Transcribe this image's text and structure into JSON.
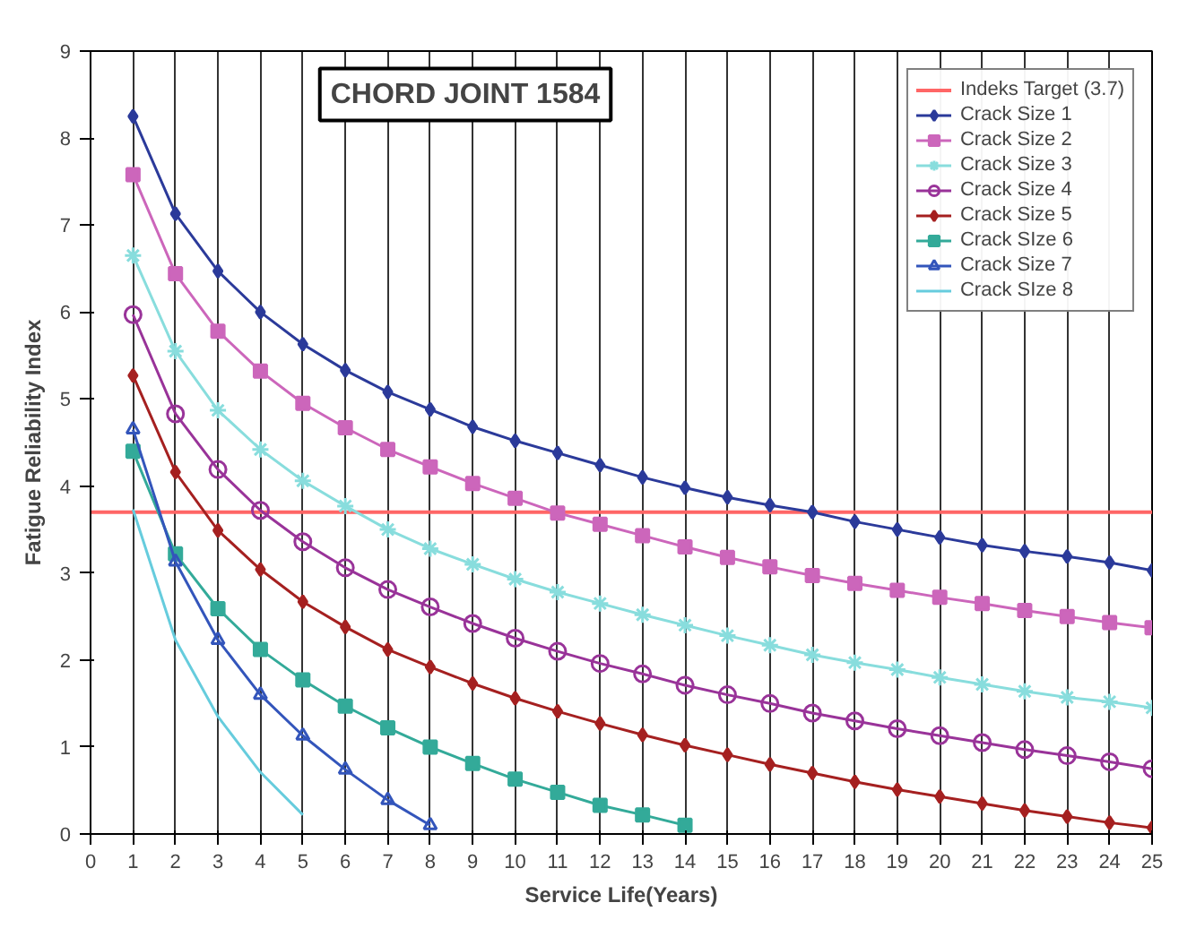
{
  "chart_data": {
    "type": "line",
    "title": "CHORD JOINT 1584",
    "xlabel": "Service Life(Years)",
    "ylabel": "Fatigue Reliability Index",
    "xlim": [
      0,
      25
    ],
    "xticks": [
      0,
      1,
      2,
      3,
      4,
      5,
      6,
      7,
      8,
      9,
      10,
      11,
      12,
      13,
      14,
      15,
      16,
      17,
      18,
      19,
      20,
      21,
      22,
      23,
      24,
      25
    ],
    "ylim": [
      0,
      9
    ],
    "yticks": [
      0,
      1,
      2,
      3,
      4,
      5,
      6,
      7,
      8,
      9
    ],
    "grid": "x",
    "legend": "top right",
    "ref_lines": [
      {
        "axis": "y",
        "value": 3.7,
        "label": "Indeks Target (3.7)",
        "color": "#ff6666"
      }
    ],
    "series": [
      {
        "name": "Crack Size 1",
        "color": "#2b3a9a",
        "marker": "diamond",
        "x": [
          1,
          2,
          3,
          4,
          5,
          6,
          7,
          8,
          9,
          10,
          11,
          12,
          13,
          14,
          15,
          16,
          17,
          18,
          19,
          20,
          21,
          22,
          23,
          24,
          25
        ],
        "values": [
          8.25,
          7.13,
          6.47,
          6.0,
          5.63,
          5.33,
          5.08,
          4.88,
          4.68,
          4.52,
          4.38,
          4.24,
          4.1,
          3.98,
          3.87,
          3.78,
          3.7,
          3.59,
          3.5,
          3.41,
          3.32,
          3.25,
          3.19,
          3.12,
          3.03
        ]
      },
      {
        "name": "Crack Size 2",
        "color": "#cc66bb",
        "marker": "square",
        "x": [
          1,
          2,
          3,
          4,
          5,
          6,
          7,
          8,
          9,
          10,
          11,
          12,
          13,
          14,
          15,
          16,
          17,
          18,
          19,
          20,
          21,
          22,
          23,
          24,
          25
        ],
        "values": [
          7.58,
          6.44,
          5.78,
          5.32,
          4.95,
          4.67,
          4.42,
          4.22,
          4.03,
          3.86,
          3.69,
          3.56,
          3.43,
          3.3,
          3.18,
          3.07,
          2.97,
          2.88,
          2.8,
          2.72,
          2.65,
          2.57,
          2.5,
          2.43,
          2.37
        ]
      },
      {
        "name": "Crack Size 3",
        "color": "#88dddd",
        "marker": "cross",
        "x": [
          1,
          2,
          3,
          4,
          5,
          6,
          7,
          8,
          9,
          10,
          11,
          12,
          13,
          14,
          15,
          16,
          17,
          18,
          19,
          20,
          21,
          22,
          23,
          24,
          25
        ],
        "values": [
          6.65,
          5.55,
          4.87,
          4.42,
          4.06,
          3.77,
          3.5,
          3.28,
          3.1,
          2.93,
          2.78,
          2.65,
          2.52,
          2.4,
          2.28,
          2.17,
          2.06,
          1.97,
          1.89,
          1.8,
          1.72,
          1.64,
          1.57,
          1.52,
          1.45
        ]
      },
      {
        "name": "Crack Size 4",
        "color": "#993399",
        "marker": "circle",
        "x": [
          1,
          2,
          3,
          4,
          5,
          6,
          7,
          8,
          9,
          10,
          11,
          12,
          13,
          14,
          15,
          16,
          17,
          18,
          19,
          20,
          21,
          22,
          23,
          24,
          25
        ],
        "values": [
          5.97,
          4.83,
          4.19,
          3.72,
          3.36,
          3.06,
          2.81,
          2.61,
          2.42,
          2.25,
          2.1,
          1.96,
          1.84,
          1.71,
          1.6,
          1.5,
          1.39,
          1.3,
          1.21,
          1.13,
          1.05,
          0.97,
          0.9,
          0.83,
          0.75
        ]
      },
      {
        "name": "Crack Size 5",
        "color": "#a52020",
        "marker": "diamond",
        "x": [
          1,
          2,
          3,
          4,
          5,
          6,
          7,
          8,
          9,
          10,
          11,
          12,
          13,
          14,
          15,
          16,
          17,
          18,
          19,
          20,
          21,
          22,
          23,
          24,
          25
        ],
        "values": [
          5.27,
          4.16,
          3.49,
          3.04,
          2.67,
          2.38,
          2.12,
          1.92,
          1.73,
          1.56,
          1.41,
          1.27,
          1.14,
          1.02,
          0.91,
          0.8,
          0.7,
          0.6,
          0.51,
          0.43,
          0.35,
          0.27,
          0.2,
          0.13,
          0.07
        ]
      },
      {
        "name": "Crack SIze 6",
        "color": "#33aa99",
        "marker": "square",
        "x": [
          1,
          2,
          3,
          4,
          5,
          6,
          7,
          8,
          9,
          10,
          11,
          12,
          13,
          14
        ],
        "values": [
          4.4,
          3.22,
          2.59,
          2.12,
          1.77,
          1.47,
          1.22,
          1.0,
          0.81,
          0.63,
          0.48,
          0.33,
          0.22,
          0.1
        ]
      },
      {
        "name": "Crack Size 7",
        "color": "#3355bb",
        "marker": "triangle",
        "x": [
          1,
          2,
          3,
          4,
          5,
          6,
          7,
          8
        ],
        "values": [
          4.65,
          3.13,
          2.23,
          1.6,
          1.13,
          0.74,
          0.39,
          0.1
        ]
      },
      {
        "name": "Crack SIze 8",
        "color": "#66ccdd",
        "marker": "none",
        "x": [
          1,
          2,
          3,
          4,
          5
        ],
        "values": [
          3.73,
          2.23,
          1.35,
          0.71,
          0.22
        ]
      }
    ]
  }
}
